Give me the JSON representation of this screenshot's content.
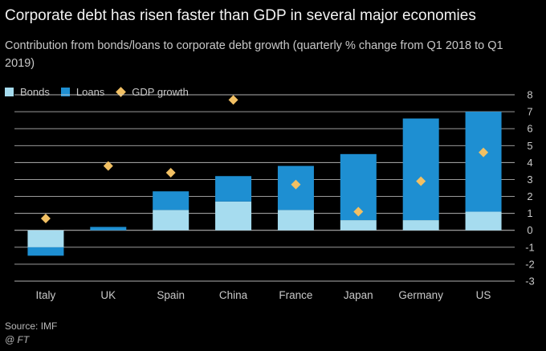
{
  "header": {
    "title": "Corporate debt has risen faster than GDP in several major economies",
    "subtitle": "Contribution from bonds/loans to corporate debt growth (quarterly % change from Q1 2018 to Q1 2019)"
  },
  "footer": {
    "source": "Source: IMF",
    "credit": "@ FT"
  },
  "colors": {
    "background": "#000000",
    "bonds": "#a6dcef",
    "loans": "#1e8fd2",
    "gdp": "#f2c063",
    "grid": "#cfcfcf",
    "text": "#c8c8c8"
  },
  "chart_data": {
    "type": "bar",
    "stacked": true,
    "categories": [
      "Italy",
      "UK",
      "Spain",
      "China",
      "France",
      "Japan",
      "Germany",
      "US"
    ],
    "series": [
      {
        "name": "Bonds",
        "values": [
          -1.0,
          0.0,
          1.2,
          1.7,
          1.2,
          0.6,
          0.6,
          1.1
        ]
      },
      {
        "name": "Loans",
        "values": [
          -0.5,
          0.2,
          1.1,
          1.5,
          2.6,
          3.9,
          6.0,
          5.9
        ]
      }
    ],
    "markers": {
      "name": "GDP growth",
      "shape": "diamond",
      "values": [
        0.7,
        3.8,
        3.4,
        7.7,
        2.7,
        1.1,
        2.9,
        4.6
      ]
    },
    "y_ticks": [
      -3,
      -2,
      -1,
      0,
      1,
      2,
      3,
      4,
      5,
      6,
      7,
      8
    ],
    "ylim": [
      -3,
      8
    ],
    "y_axis_side": "right",
    "grid": true,
    "legend_position": "top-left"
  }
}
